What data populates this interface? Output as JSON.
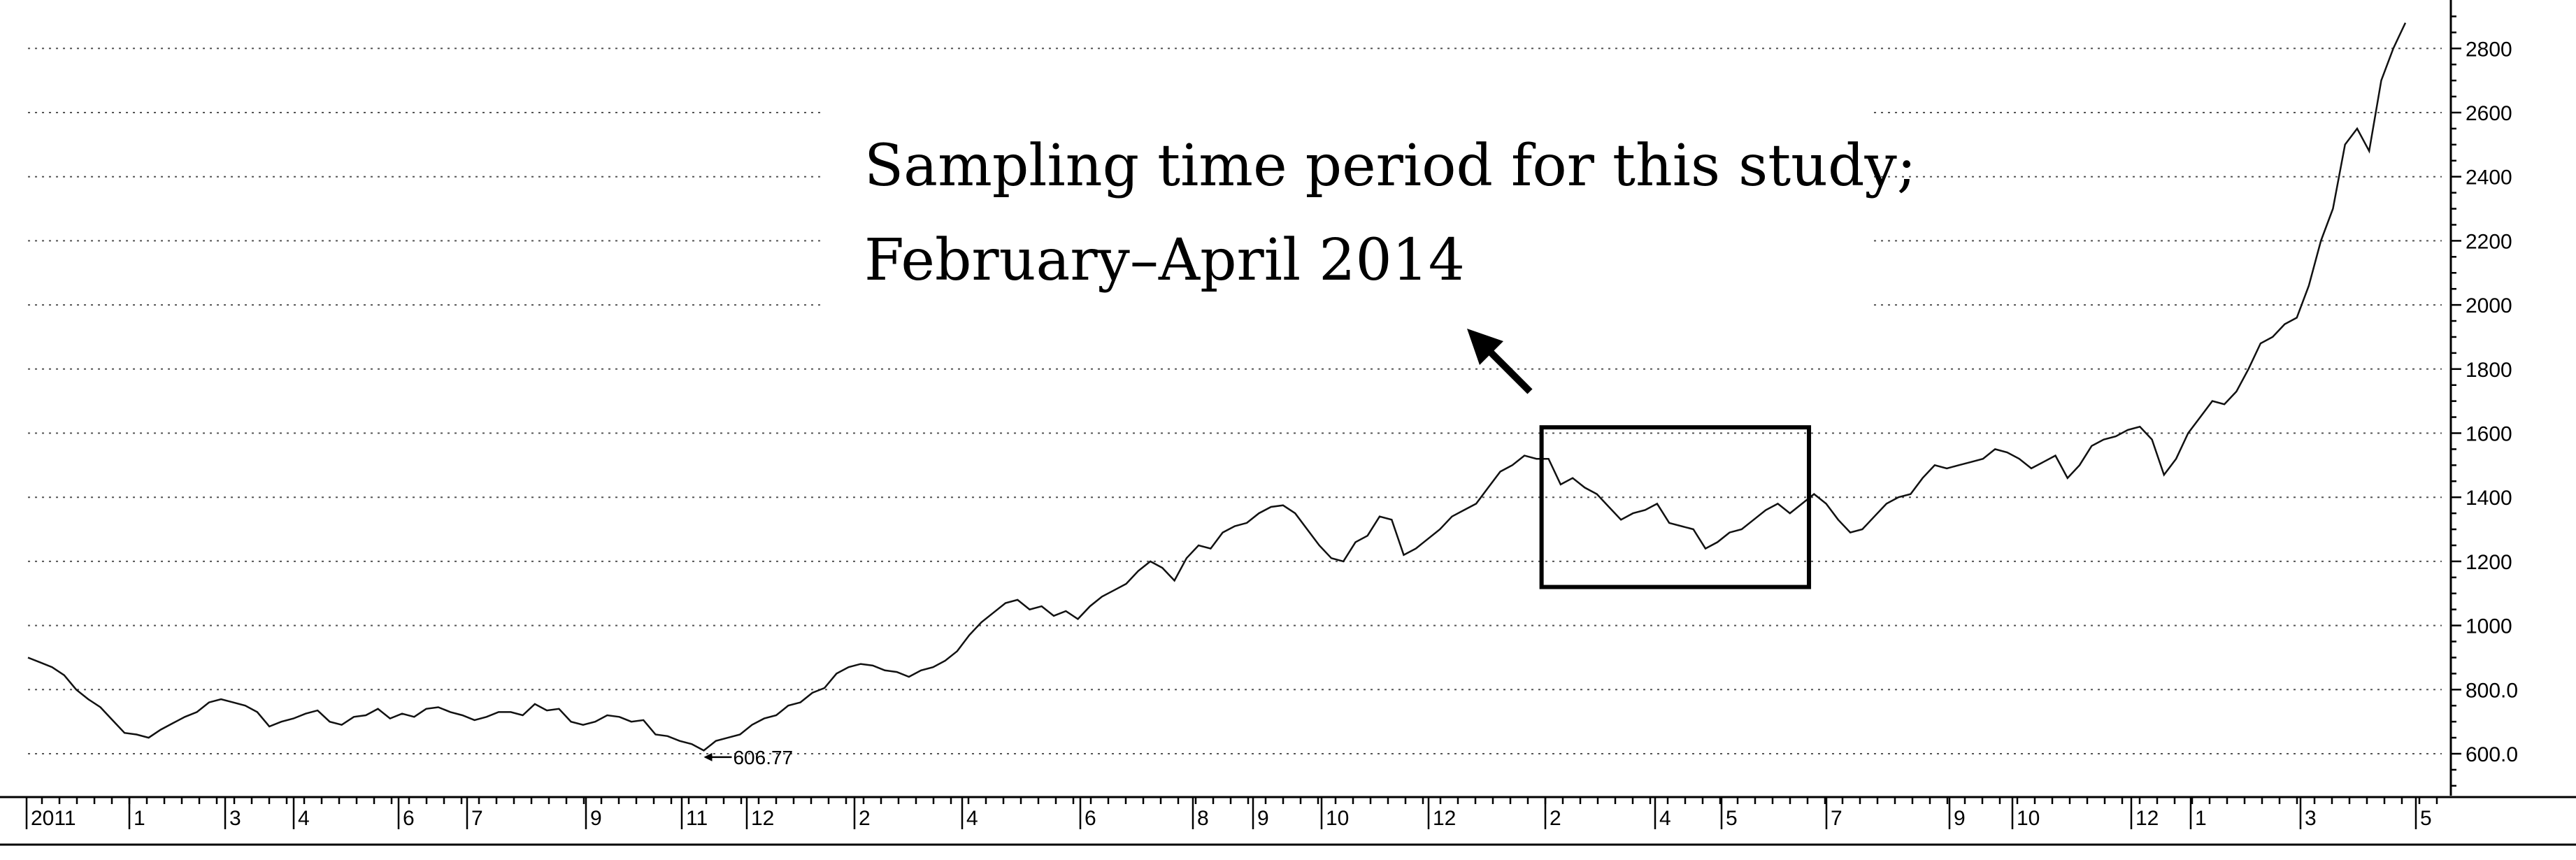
{
  "chart_data": {
    "type": "line",
    "title": "",
    "xlabel": "",
    "ylabel": "",
    "ylim": [
      480,
      2900
    ],
    "yticks": [
      600,
      800,
      1000,
      1200,
      1400,
      1600,
      1800,
      2000,
      2200,
      2400,
      2600,
      2800
    ],
    "ytick_labels": [
      "600.0",
      "800.0",
      "1000",
      "1200",
      "1400",
      "1600",
      "1800",
      "2000",
      "2200",
      "2400",
      "2600",
      "2800"
    ],
    "grid": true,
    "x_axis_labels": [
      "2011",
      "1",
      "3",
      "4",
      "6",
      "7",
      "9",
      "11",
      "12",
      "2",
      "4",
      "6",
      "8",
      "9",
      "10",
      "12",
      "2",
      "4",
      "5",
      "7",
      "9",
      "10",
      "12",
      "1",
      "3",
      "5"
    ],
    "series": [
      {
        "values": [
          900,
          885,
          870,
          845,
          800,
          770,
          745,
          705,
          665,
          660,
          650,
          675,
          695,
          715,
          730,
          760,
          770,
          760,
          750,
          730,
          685,
          700,
          710,
          725,
          735,
          700,
          690,
          715,
          720,
          740,
          710,
          725,
          715,
          740,
          745,
          730,
          720,
          705,
          715,
          730,
          730,
          720,
          755,
          735,
          740,
          700,
          690,
          700,
          720,
          715,
          700,
          705,
          660,
          655,
          640,
          630,
          610,
          640,
          650,
          660,
          690,
          710,
          720,
          750,
          760,
          790,
          805,
          850,
          870,
          880,
          875,
          860,
          855,
          840,
          860,
          870,
          890,
          920,
          970,
          1010,
          1040,
          1070,
          1080,
          1050,
          1060,
          1030,
          1045,
          1020,
          1060,
          1090,
          1110,
          1130,
          1170,
          1200,
          1180,
          1140,
          1210,
          1250,
          1240,
          1290,
          1310,
          1320,
          1350,
          1370,
          1375,
          1350,
          1300,
          1250,
          1210,
          1200,
          1260,
          1280,
          1340,
          1330,
          1220,
          1240,
          1270,
          1300,
          1340,
          1360,
          1380,
          1430,
          1480,
          1500,
          1530,
          1520,
          1520,
          1440,
          1460,
          1430,
          1410,
          1370,
          1330,
          1350,
          1360,
          1380,
          1320,
          1310,
          1300,
          1240,
          1260,
          1290,
          1300,
          1330,
          1360,
          1380,
          1350,
          1380,
          1410,
          1380,
          1330,
          1290,
          1300,
          1340,
          1380,
          1400,
          1410,
          1460,
          1500,
          1490,
          1500,
          1510,
          1520,
          1550,
          1540,
          1520,
          1490,
          1510,
          1530,
          1460,
          1500,
          1560,
          1580,
          1590,
          1610,
          1620,
          1580,
          1470,
          1520,
          1600,
          1650,
          1700,
          1690,
          1730,
          1800,
          1880,
          1900,
          1940,
          1960,
          2060,
          2200,
          2300,
          2500,
          2550,
          2480,
          2700,
          2800,
          2880
        ]
      }
    ],
    "annotations": {
      "sampling_line1": "Sampling time period for this study;",
      "sampling_line2": "February–April 2014",
      "min_label": "606.77",
      "min_value": 606.77,
      "highlight_range": {
        "start_index": 126,
        "end_index": 147
      }
    }
  }
}
